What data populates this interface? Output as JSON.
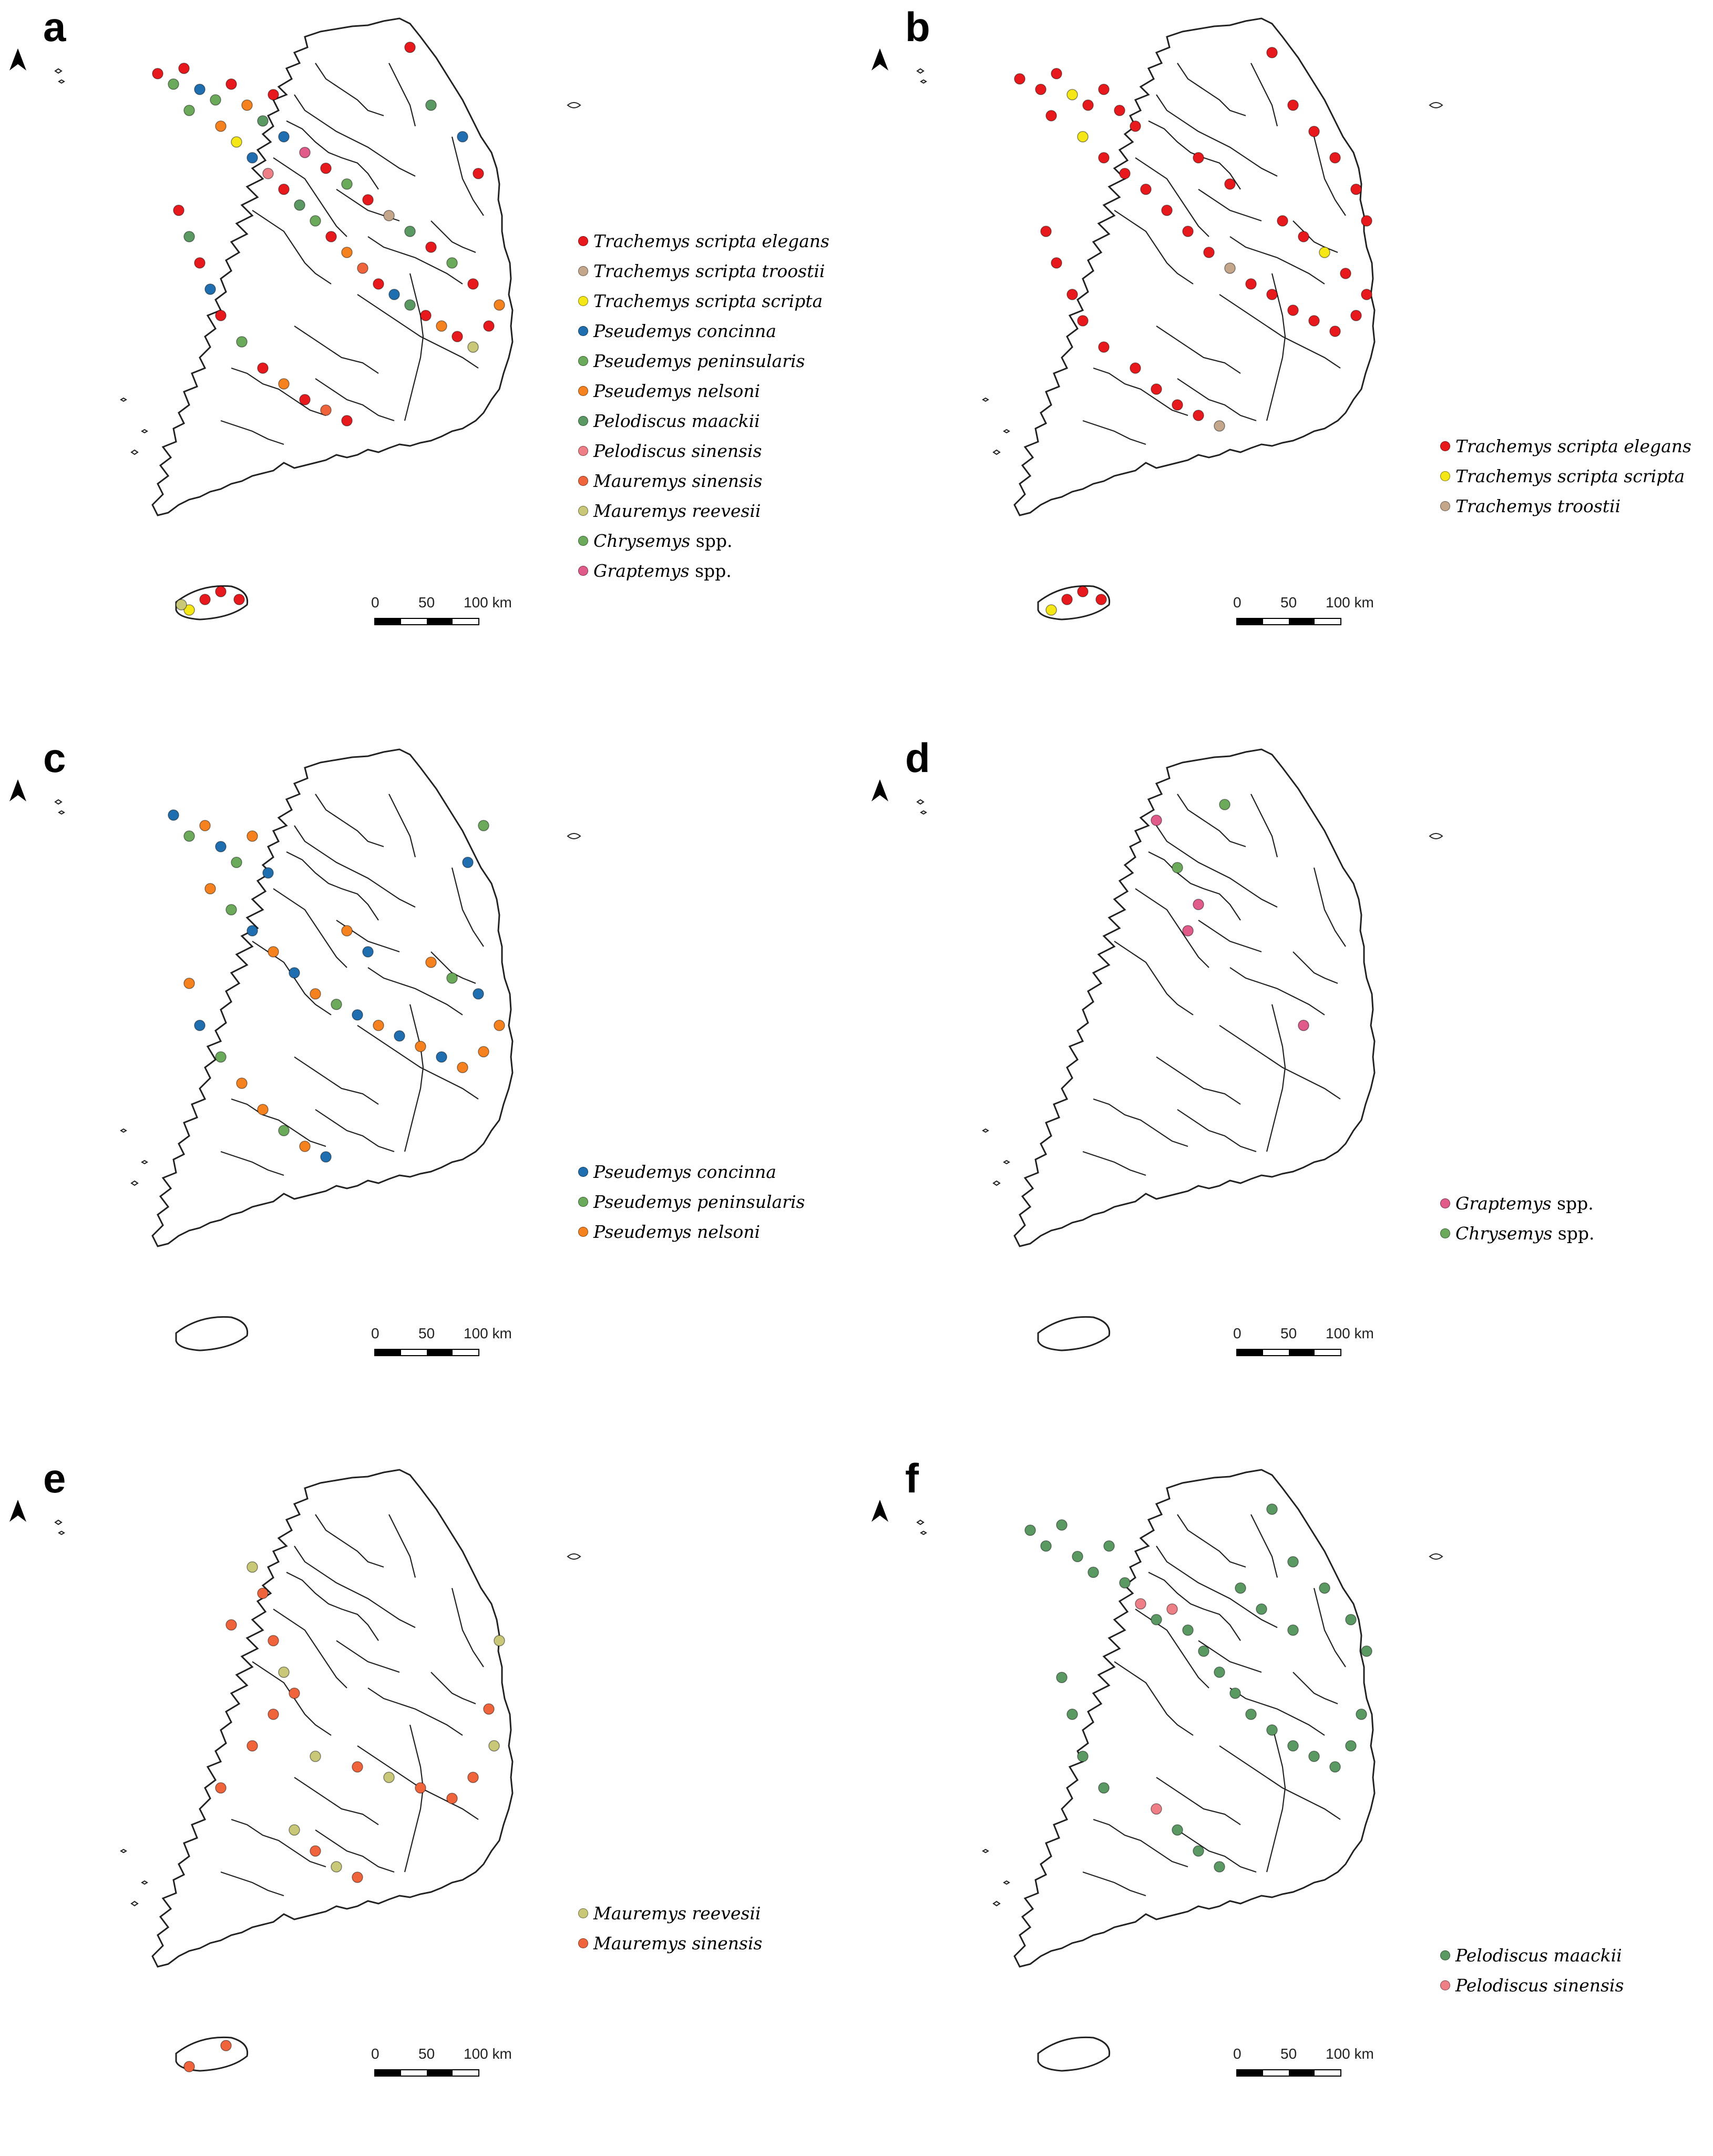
{
  "colors": {
    "Trachemys scripta elegans": "#e8191c",
    "Trachemys scripta troostii": "#c4a68a",
    "Trachemys scripta scripta": "#f5e616",
    "Pseudemys concinna": "#1f6fb0",
    "Pseudemys peninsularis": "#6aaa5a",
    "Pseudemys nelsoni": "#f5821f",
    "Pelodiscus maackii": "#5a9a62",
    "Pelodiscus sinensis": "#ef7f86",
    "Mauremys sinensis": "#f0643c",
    "Mauremys reevesii": "#c8c878",
    "Chrysemys spp.": "#6aaa5a",
    "Graptemys spp.": "#e05a8a"
  },
  "scale": {
    "zero": "0",
    "mid": "50",
    "end": "100 km"
  },
  "panels": [
    {
      "letter": "a",
      "legend": [
        {
          "genus": "Trachemys scripta elegans",
          "suffix": "",
          "species": "Trachemys scripta elegans"
        },
        {
          "genus": "Trachemys scripta troostii",
          "suffix": "",
          "species": "Trachemys scripta troostii"
        },
        {
          "genus": "Trachemys scripta scripta",
          "suffix": "",
          "species": "Trachemys scripta scripta"
        },
        {
          "genus": "Pseudemys concinna",
          "suffix": "",
          "species": "Pseudemys concinna"
        },
        {
          "genus": "Pseudemys peninsularis",
          "suffix": "",
          "species": "Pseudemys peninsularis"
        },
        {
          "genus": "Pseudemys nelsoni",
          "suffix": "",
          "species": "Pseudemys nelsoni"
        },
        {
          "genus": "Pelodiscus maackii",
          "suffix": "",
          "species": "Pelodiscus maackii"
        },
        {
          "genus": "Pelodiscus sinensis",
          "suffix": "",
          "species": "Pelodiscus sinensis"
        },
        {
          "genus": "Mauremys sinensis",
          "suffix": "",
          "species": "Mauremys sinensis"
        },
        {
          "genus": "Mauremys reevesii",
          "suffix": "",
          "species": "Mauremys reevesii"
        },
        {
          "genus": "Chrysemys",
          "suffix": " spp.",
          "species": "Chrysemys spp."
        },
        {
          "genus": "Graptemys",
          "suffix": " spp.",
          "species": "Graptemys spp."
        }
      ]
    },
    {
      "letter": "b",
      "legend": [
        {
          "genus": "Trachemys scripta elegans",
          "suffix": "",
          "species": "Trachemys scripta elegans"
        },
        {
          "genus": "Trachemys scripta scripta",
          "suffix": "",
          "species": "Trachemys scripta scripta"
        },
        {
          "genus": "Trachemys troostii",
          "suffix": "",
          "species": "Trachemys scripta troostii"
        }
      ]
    },
    {
      "letter": "c",
      "legend": [
        {
          "genus": "Pseudemys concinna",
          "suffix": "",
          "species": "Pseudemys concinna"
        },
        {
          "genus": "Pseudemys peninsularis",
          "suffix": "",
          "species": "Pseudemys peninsularis"
        },
        {
          "genus": "Pseudemys nelsoni",
          "suffix": "",
          "species": "Pseudemys nelsoni"
        }
      ]
    },
    {
      "letter": "d",
      "legend": [
        {
          "genus": "Graptemys",
          "suffix": " spp.",
          "species": "Graptemys spp."
        },
        {
          "genus": "Chrysemys",
          "suffix": " spp.",
          "species": "Chrysemys spp."
        }
      ]
    },
    {
      "letter": "e",
      "legend": [
        {
          "genus": "Mauremys reevesii",
          "suffix": "",
          "species": "Mauremys reevesii"
        },
        {
          "genus": "Mauremys sinensis",
          "suffix": "",
          "species": "Mauremys sinensis"
        }
      ]
    },
    {
      "letter": "f",
      "legend": [
        {
          "genus": "Pelodiscus maackii",
          "suffix": "",
          "species": "Pelodiscus maackii"
        },
        {
          "genus": "Pelodiscus sinensis",
          "suffix": "",
          "species": "Pelodiscus sinensis"
        }
      ]
    }
  ]
}
